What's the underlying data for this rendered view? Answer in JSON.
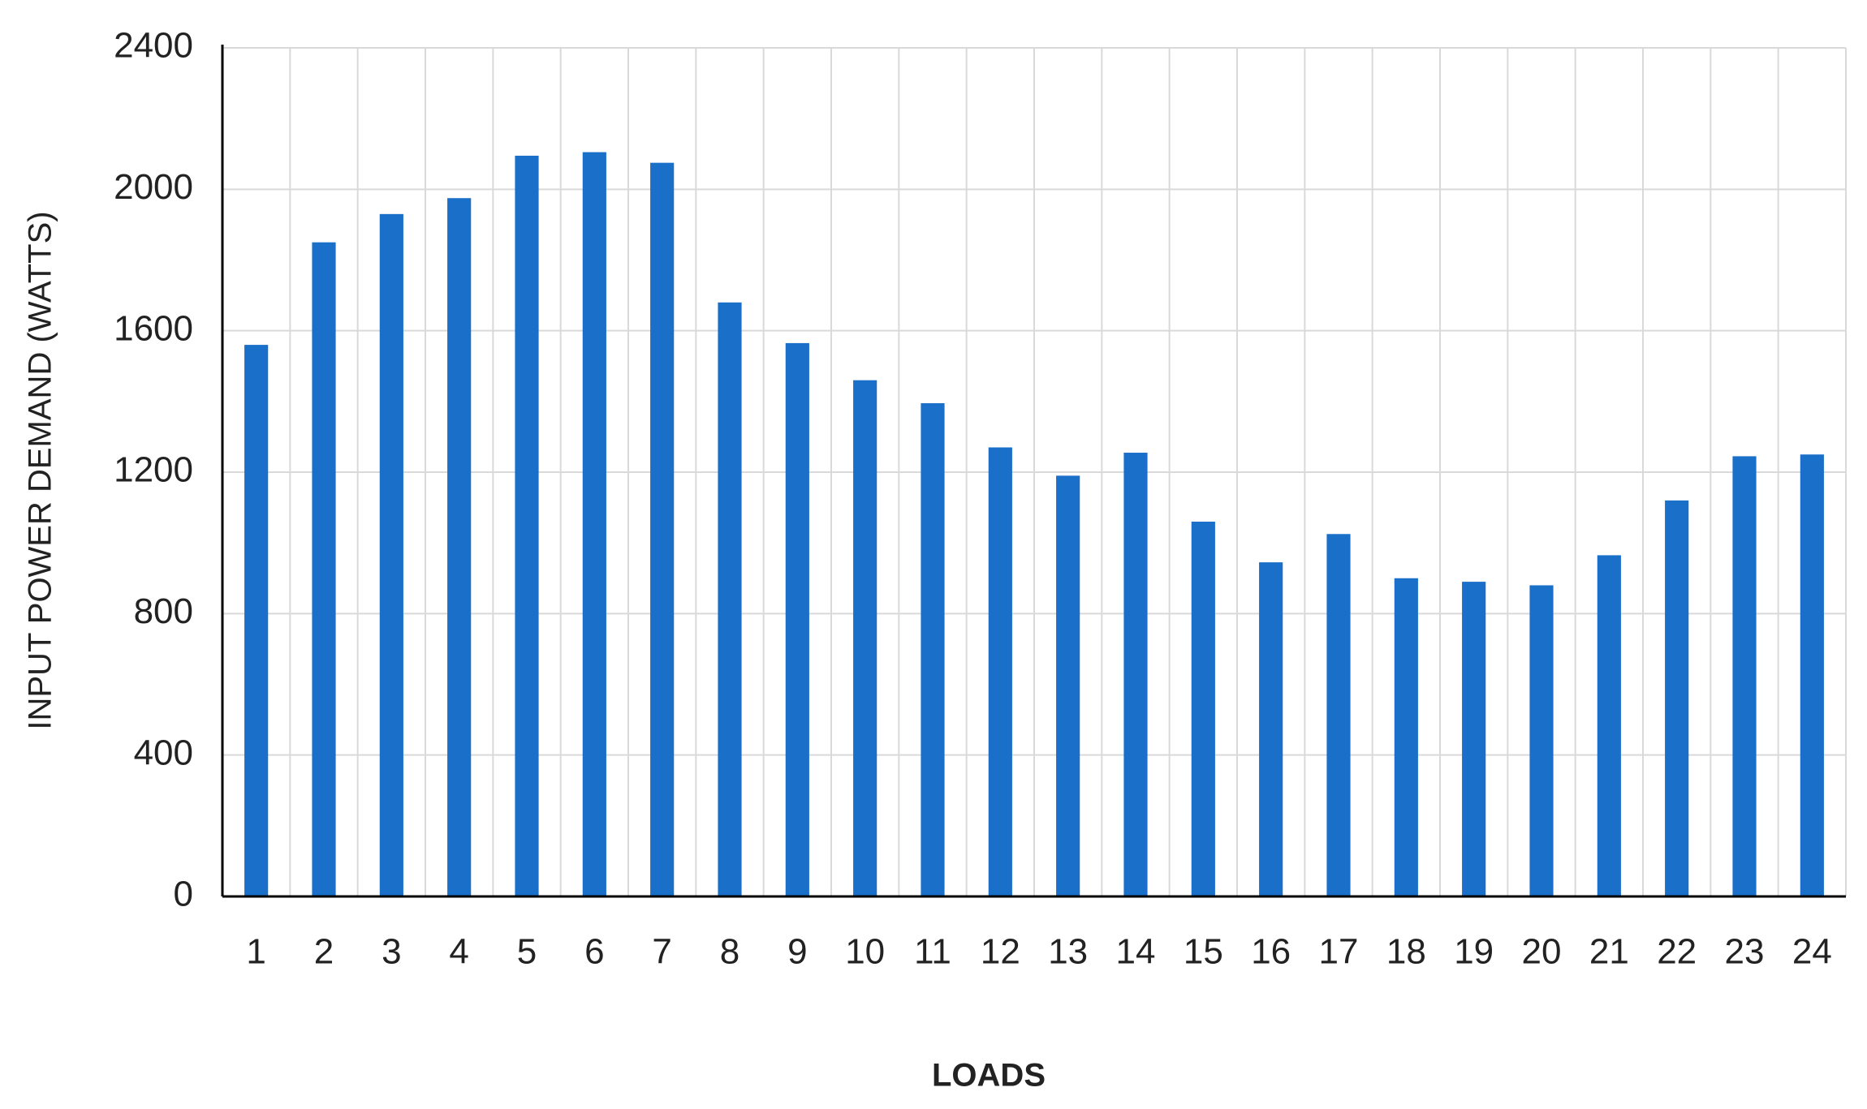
{
  "chart_data": {
    "type": "bar",
    "x_label": "LOADS",
    "y_label": "INPUT POWER DEMAND (WATTS)",
    "categories": [
      "1",
      "2",
      "3",
      "4",
      "5",
      "6",
      "7",
      "8",
      "9",
      "10",
      "11",
      "12",
      "13",
      "14",
      "15",
      "16",
      "17",
      "18",
      "19",
      "20",
      "21",
      "22",
      "23",
      "24"
    ],
    "values": [
      1560,
      1850,
      1930,
      1975,
      2095,
      2105,
      2075,
      1680,
      1565,
      1460,
      1395,
      1270,
      1190,
      1255,
      1060,
      945,
      1025,
      900,
      890,
      880,
      965,
      1120,
      1245,
      1250
    ],
    "color": "#1a6fc9",
    "ylim": [
      0,
      2400
    ],
    "yticks": [
      0,
      400,
      800,
      1200,
      1600,
      2000,
      2400
    ],
    "grid": true
  }
}
